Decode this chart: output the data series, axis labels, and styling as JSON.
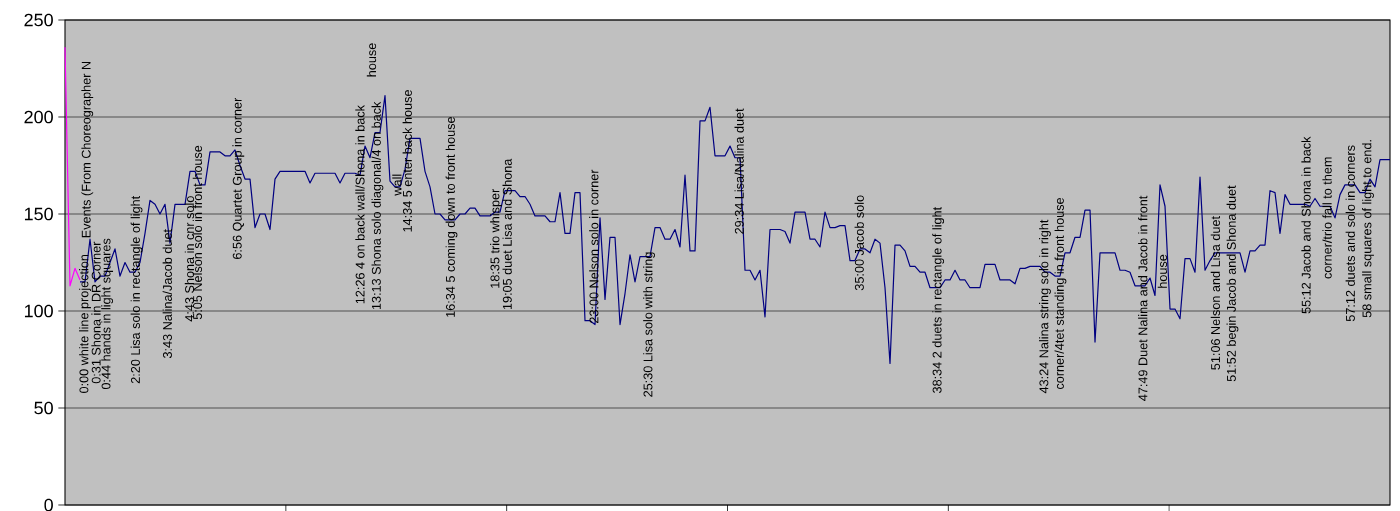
{
  "chart_data": {
    "type": "line",
    "ylim": [
      0,
      250
    ],
    "yticks": [
      0,
      50,
      100,
      150,
      200,
      250
    ],
    "tick_labels": "y",
    "grid": "y",
    "categories": [
      null,
      null,
      null,
      null,
      null,
      null,
      null,
      null,
      null,
      null,
      null,
      null,
      null,
      null,
      null,
      null,
      null,
      null,
      null,
      null,
      null,
      null,
      null,
      null,
      null,
      null,
      null,
      null,
      null,
      null,
      null,
      null,
      null,
      null,
      null,
      null,
      null,
      null,
      null,
      null,
      null,
      null,
      null,
      null,
      null,
      null,
      null,
      null,
      null,
      null,
      null,
      null,
      null,
      null,
      null,
      null,
      null,
      null,
      null,
      null,
      null,
      null,
      null,
      null,
      null,
      null,
      null,
      null,
      null,
      null,
      null,
      null,
      null,
      null,
      null,
      null,
      null,
      null,
      null,
      null,
      null,
      null,
      null,
      null,
      null,
      null,
      null,
      null,
      null,
      null,
      null,
      null,
      null,
      null,
      null,
      null,
      null,
      null,
      null,
      null,
      null,
      null,
      null,
      null,
      null,
      null,
      null,
      null,
      null,
      null,
      null,
      null,
      null,
      null,
      null,
      null,
      null,
      null,
      null,
      null,
      null,
      null,
      null,
      null,
      null,
      null,
      null,
      null,
      null,
      null,
      null,
      null,
      null,
      null,
      null,
      null,
      null,
      null,
      null,
      null,
      null,
      null,
      null,
      null,
      null,
      null,
      null,
      null,
      null,
      null,
      null,
      null,
      null,
      null,
      null,
      null,
      null,
      null,
      null,
      null,
      null,
      null,
      null,
      null,
      null,
      null,
      null,
      null,
      null,
      null,
      null,
      null,
      null,
      null,
      null,
      null,
      null,
      null,
      null,
      null,
      null,
      null,
      null,
      null,
      null,
      null,
      null,
      null,
      null,
      null,
      null,
      null,
      null,
      null,
      null,
      null,
      null,
      null,
      null,
      null,
      null,
      null,
      null,
      null,
      null,
      null,
      null,
      null,
      null,
      null,
      null,
      null,
      null,
      null,
      null,
      null,
      null,
      null,
      null,
      null,
      null,
      null,
      null,
      null,
      null,
      null,
      null,
      null,
      null,
      null,
      null,
      null,
      null,
      null,
      null,
      null,
      null,
      null,
      null,
      null,
      null,
      null,
      null,
      null,
      null,
      null,
      null,
      null,
      null,
      null,
      null,
      null,
      null,
      null,
      null,
      null,
      null,
      null,
      null,
      null,
      null,
      null,
      null,
      null,
      null,
      null
    ],
    "series": [
      {
        "color": "#ff00ff",
        "values": [
          236,
          113,
          122,
          116,
          null,
          null,
          null,
          null,
          null,
          null,
          null,
          null,
          null,
          null,
          null,
          null,
          null,
          null,
          null,
          null,
          null,
          null,
          null,
          null,
          null,
          null,
          null,
          null,
          null,
          null,
          null,
          null,
          null,
          null,
          null,
          null,
          null,
          null,
          null,
          null,
          null,
          null,
          null,
          null,
          null,
          null,
          null,
          null,
          null,
          null,
          null,
          null,
          null,
          null,
          null,
          null,
          null,
          null,
          null,
          null,
          null,
          null,
          null,
          null,
          null,
          null,
          null,
          null,
          null,
          null,
          null,
          null,
          null,
          null,
          null,
          null,
          null,
          null,
          null,
          null,
          null,
          null,
          null,
          null,
          null,
          null,
          null,
          null,
          null,
          null,
          null,
          null,
          null,
          null,
          null,
          null,
          null,
          null,
          null,
          null,
          null,
          null,
          null,
          null,
          null,
          null,
          null,
          null,
          null,
          null,
          null,
          null,
          null,
          null,
          null,
          null,
          null,
          null,
          null,
          null,
          null,
          null,
          null,
          null,
          null,
          null,
          null,
          null,
          null,
          null,
          null,
          null,
          null,
          null,
          null,
          null,
          null,
          null,
          null,
          null,
          null,
          null,
          null,
          null,
          null,
          null,
          null,
          null,
          null,
          null,
          null,
          null,
          null,
          null,
          null,
          null,
          null,
          null,
          null,
          null,
          null,
          null,
          null,
          null,
          null,
          null,
          null,
          null,
          null,
          null,
          null,
          null,
          null,
          null,
          null,
          null,
          null,
          null,
          null,
          null,
          null,
          null,
          null,
          null,
          null,
          null,
          null,
          null,
          null,
          null,
          null,
          null,
          null,
          null,
          null,
          null,
          null,
          null,
          null,
          null,
          null,
          null,
          null,
          null,
          null,
          null,
          null,
          null,
          null,
          null,
          null,
          null,
          null,
          null,
          null,
          null,
          null,
          null,
          null,
          null,
          null,
          null,
          null,
          null,
          null,
          null,
          null,
          null,
          null,
          null,
          null,
          null,
          null,
          null,
          null,
          null,
          null,
          null,
          null,
          null,
          null,
          null,
          null,
          null,
          null,
          null,
          null,
          null,
          null,
          null,
          null,
          null,
          null,
          null,
          null,
          null,
          null,
          null,
          null,
          null,
          null,
          null,
          null,
          null,
          null,
          null
        ]
      },
      {
        "color": "#000080",
        "values": [
          null,
          null,
          null,
          115,
          115,
          137,
          115,
          118,
          118,
          125,
          132,
          118,
          125,
          120,
          120,
          125,
          140,
          157,
          155,
          150,
          155,
          135,
          155,
          155,
          155,
          172,
          172,
          165,
          165,
          182,
          182,
          182,
          180,
          180,
          183,
          175,
          168,
          168,
          143,
          150,
          150,
          142,
          168,
          172,
          172,
          172,
          172,
          172,
          172,
          166,
          171,
          171,
          171,
          171,
          171,
          166,
          171,
          171,
          171,
          170,
          185,
          179,
          192,
          192,
          211,
          167,
          164,
          164,
          173,
          189,
          189,
          189,
          172,
          164,
          150,
          150,
          147,
          147,
          147,
          150,
          150,
          153,
          153,
          149,
          149,
          149,
          151,
          151,
          162,
          162,
          162,
          159,
          159,
          155,
          149,
          149,
          149,
          146,
          146,
          161,
          140,
          140,
          161,
          161,
          95,
          95,
          93,
          148,
          106,
          138,
          138,
          93,
          109,
          129,
          115,
          128,
          128,
          128,
          143,
          143,
          137,
          137,
          142,
          133,
          170,
          131,
          131,
          198,
          198,
          205,
          180,
          180,
          180,
          185,
          179,
          179,
          121,
          121,
          116,
          121,
          97,
          142,
          142,
          142,
          141,
          135,
          151,
          151,
          151,
          137,
          137,
          133,
          151,
          143,
          143,
          144,
          144,
          126,
          126,
          132,
          132,
          130,
          137,
          135,
          112,
          73,
          134,
          134,
          131,
          123,
          123,
          120,
          120,
          112,
          112,
          112,
          116,
          116,
          121,
          116,
          116,
          112,
          112,
          112,
          124,
          124,
          124,
          116,
          116,
          116,
          114,
          122,
          122,
          123,
          123,
          123,
          120,
          120,
          118,
          118,
          130,
          130,
          138,
          138,
          152,
          152,
          84,
          130,
          130,
          130,
          130,
          121,
          121,
          120,
          113,
          113,
          113,
          117,
          108,
          165,
          154,
          101,
          101,
          96,
          127,
          127,
          120,
          169,
          121,
          126,
          130,
          130,
          130,
          130,
          130,
          130,
          120,
          131,
          131,
          134,
          134,
          162,
          161,
          140,
          160,
          155,
          155,
          155,
          155,
          154,
          158,
          154,
          154,
          154,
          148,
          160,
          165,
          165,
          165,
          161,
          161,
          168,
          164,
          178,
          178,
          178
        ]
      }
    ],
    "annotations": [
      "0:00   white line projection",
      "Events (From Choreographer N",
      "0:31   Shona in DR Corner",
      "0:44   hands in light squares",
      "2:20   Lisa solo   in rectangle of light",
      "3:43   Nalina/Jacob duet",
      "4:43   Shona in cnr solo",
      "5:05   Nelson solo in front house",
      "6:56   Quartet Group in corner",
      "12:26   4 on back wall/Shona in back",
      "house",
      "13:13   Shona solo diagonal/4 on back",
      "wall",
      "14:34   5 enter back house",
      "16:34   5 coming down to front house",
      "18:35   trio whisper",
      "19:05   duet Lisa and Shona",
      "23:00   Nelson solo in corner",
      "25:30   Lisa solo with string",
      "29:34   Lisa/Nalina duet",
      "35:00   Jacob solo",
      "38:34   2 duets in rectangle of light",
      "43:24   Nalina string solo in right",
      "corner/4tet standing in front house",
      "47:49   Duet Nalina and Jacob in front",
      "house",
      "51:06   Nelson and Lisa duet",
      "51:52   begin Jacob and Shona duet",
      "55:12   Jacob and Shona in back",
      "corner/trio fall to them",
      "57:12   duets and   solo in corners",
      "58   small squares of light to end."
    ]
  }
}
